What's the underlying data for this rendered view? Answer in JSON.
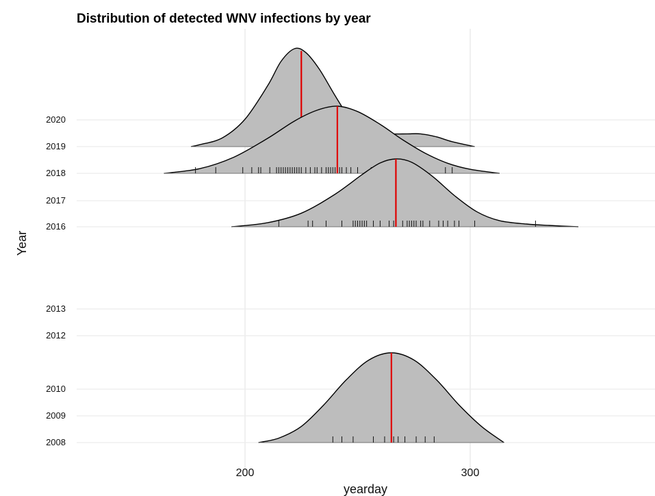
{
  "chart_data": {
    "type": "ridgeline density",
    "title": "Distribution of detected WNV infections by year",
    "xlabel": "yearday",
    "ylabel": "Year",
    "x_ticks": [
      200,
      300
    ],
    "y_ticks": [
      "2008",
      "2009",
      "2010",
      "2012",
      "2013",
      "2016",
      "2017",
      "2018",
      "2019",
      "2020"
    ],
    "grid": true,
    "fill_color": "#bdbdbd",
    "outline_color": "#000000",
    "median_color": "#e00000",
    "series": [
      {
        "year": "2020",
        "curve": [
          [
            176,
            0.0
          ],
          [
            180,
            0.02
          ],
          [
            190,
            0.09
          ],
          [
            200,
            0.28
          ],
          [
            210,
            0.62
          ],
          [
            216,
            0.87
          ],
          [
            222,
            1.0
          ],
          [
            227,
            0.96
          ],
          [
            233,
            0.79
          ],
          [
            240,
            0.52
          ],
          [
            246,
            0.31
          ],
          [
            252,
            0.2
          ],
          [
            258,
            0.15
          ],
          [
            265,
            0.13
          ],
          [
            272,
            0.13
          ],
          [
            278,
            0.13
          ],
          [
            285,
            0.1
          ],
          [
            292,
            0.05
          ],
          [
            302,
            0.0
          ]
        ],
        "median": 225,
        "observations": []
      },
      {
        "year": "2018",
        "curve": [
          [
            164,
            0.0
          ],
          [
            180,
            0.07
          ],
          [
            195,
            0.24
          ],
          [
            210,
            0.52
          ],
          [
            222,
            0.78
          ],
          [
            232,
            0.94
          ],
          [
            241,
            1.0
          ],
          [
            250,
            0.92
          ],
          [
            260,
            0.73
          ],
          [
            270,
            0.5
          ],
          [
            280,
            0.3
          ],
          [
            290,
            0.15
          ],
          [
            300,
            0.06
          ],
          [
            313,
            0.0
          ]
        ],
        "median": 241,
        "observations": [
          178,
          187,
          199,
          203,
          206,
          207,
          211,
          214,
          215,
          216,
          217,
          218,
          219,
          220,
          221,
          222,
          223,
          224,
          225,
          227,
          229,
          231,
          232,
          234,
          236,
          237,
          238,
          239,
          240,
          241,
          242,
          243,
          245,
          247,
          250,
          256,
          262,
          269,
          271,
          289,
          292
        ]
      },
      {
        "year": "2016",
        "curve": [
          [
            194,
            0.0
          ],
          [
            210,
            0.06
          ],
          [
            225,
            0.2
          ],
          [
            240,
            0.48
          ],
          [
            252,
            0.77
          ],
          [
            260,
            0.94
          ],
          [
            267,
            1.0
          ],
          [
            274,
            0.95
          ],
          [
            283,
            0.75
          ],
          [
            293,
            0.46
          ],
          [
            303,
            0.22
          ],
          [
            313,
            0.09
          ],
          [
            325,
            0.04
          ],
          [
            335,
            0.02
          ],
          [
            348,
            0.0
          ]
        ],
        "median": 267,
        "observations": [
          215,
          228,
          230,
          236,
          243,
          248,
          249,
          250,
          251,
          252,
          253,
          254,
          257,
          260,
          264,
          266,
          267,
          270,
          272,
          273,
          274,
          275,
          276,
          278,
          279,
          282,
          286,
          288,
          290,
          293,
          295,
          302,
          329
        ]
      },
      {
        "year": "2008",
        "curve": [
          [
            206,
            0.0
          ],
          [
            215,
            0.05
          ],
          [
            225,
            0.18
          ],
          [
            235,
            0.42
          ],
          [
            245,
            0.7
          ],
          [
            255,
            0.92
          ],
          [
            265,
            1.0
          ],
          [
            275,
            0.92
          ],
          [
            285,
            0.7
          ],
          [
            295,
            0.42
          ],
          [
            305,
            0.18
          ],
          [
            315,
            0.0
          ]
        ],
        "median": 265,
        "observations": [
          239,
          243,
          248,
          257,
          262,
          265,
          266,
          268,
          271,
          276,
          280,
          284
        ]
      }
    ]
  }
}
